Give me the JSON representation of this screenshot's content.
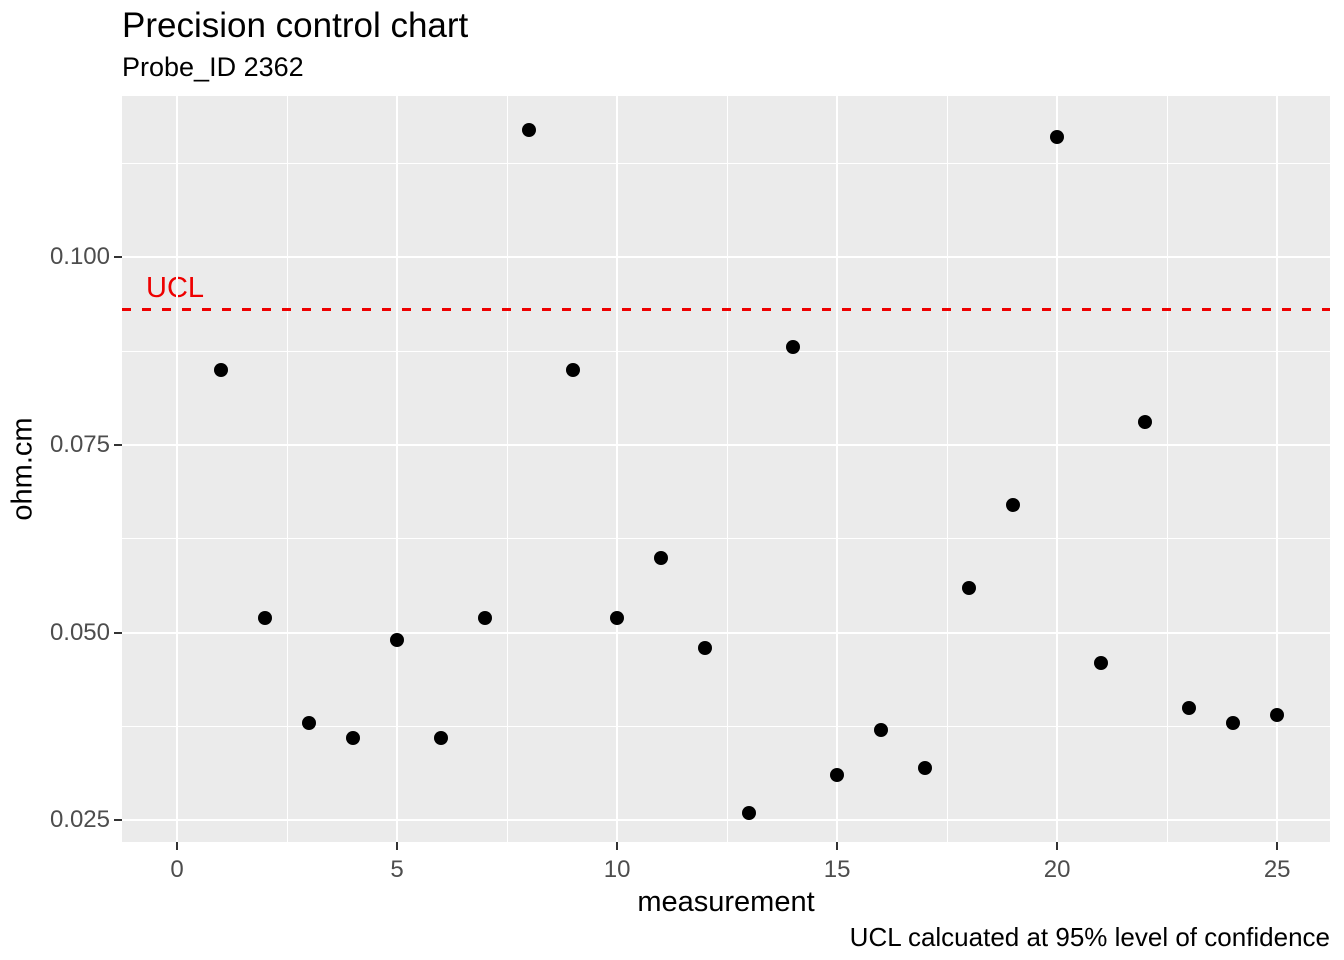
{
  "chart_data": {
    "type": "scatter",
    "title": "Precision control chart",
    "subtitle": "Probe_ID 2362",
    "xlabel": "measurement",
    "ylabel": "ohm.cm",
    "caption": "UCL calcuated at 95% level of confidence",
    "ucl_label": "UCL",
    "ucl": 0.093,
    "x": [
      1,
      2,
      3,
      4,
      5,
      6,
      7,
      8,
      9,
      10,
      11,
      12,
      13,
      14,
      15,
      16,
      17,
      18,
      19,
      20,
      21,
      22,
      23,
      24,
      25
    ],
    "y": [
      0.085,
      0.052,
      0.038,
      0.036,
      0.049,
      0.036,
      0.052,
      0.117,
      0.085,
      0.052,
      0.06,
      0.048,
      0.026,
      0.088,
      0.031,
      0.037,
      0.032,
      0.056,
      0.067,
      0.116,
      0.046,
      0.078,
      0.04,
      0.038,
      0.039
    ],
    "x_ticks": [
      0,
      5,
      10,
      15,
      20,
      25
    ],
    "y_ticks": [
      0.1,
      0.075,
      0.05,
      0.025
    ],
    "y_tick_labels": [
      "0.100",
      "0.075",
      "0.050",
      "0.025"
    ],
    "x_minor_step": 2.5,
    "y_minor_step": 0.0125,
    "xlim": [
      -1.25,
      26.2
    ],
    "ylim": [
      0.0221,
      0.1215
    ],
    "grid": true,
    "legend": "none",
    "colors": {
      "point": "#000000",
      "ucl_line": "#EE0000",
      "panel_bg": "#EBEBEB",
      "grid": "#FFFFFF",
      "tick_label": "#4D4D4D",
      "tick_mark": "#333333"
    }
  }
}
